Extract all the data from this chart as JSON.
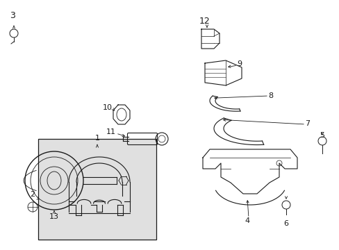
{
  "background_color": "#ffffff",
  "line_color": "#1a1a1a",
  "box_fill": "#e8e8e8",
  "figsize": [
    4.89,
    3.6
  ],
  "dpi": 100
}
